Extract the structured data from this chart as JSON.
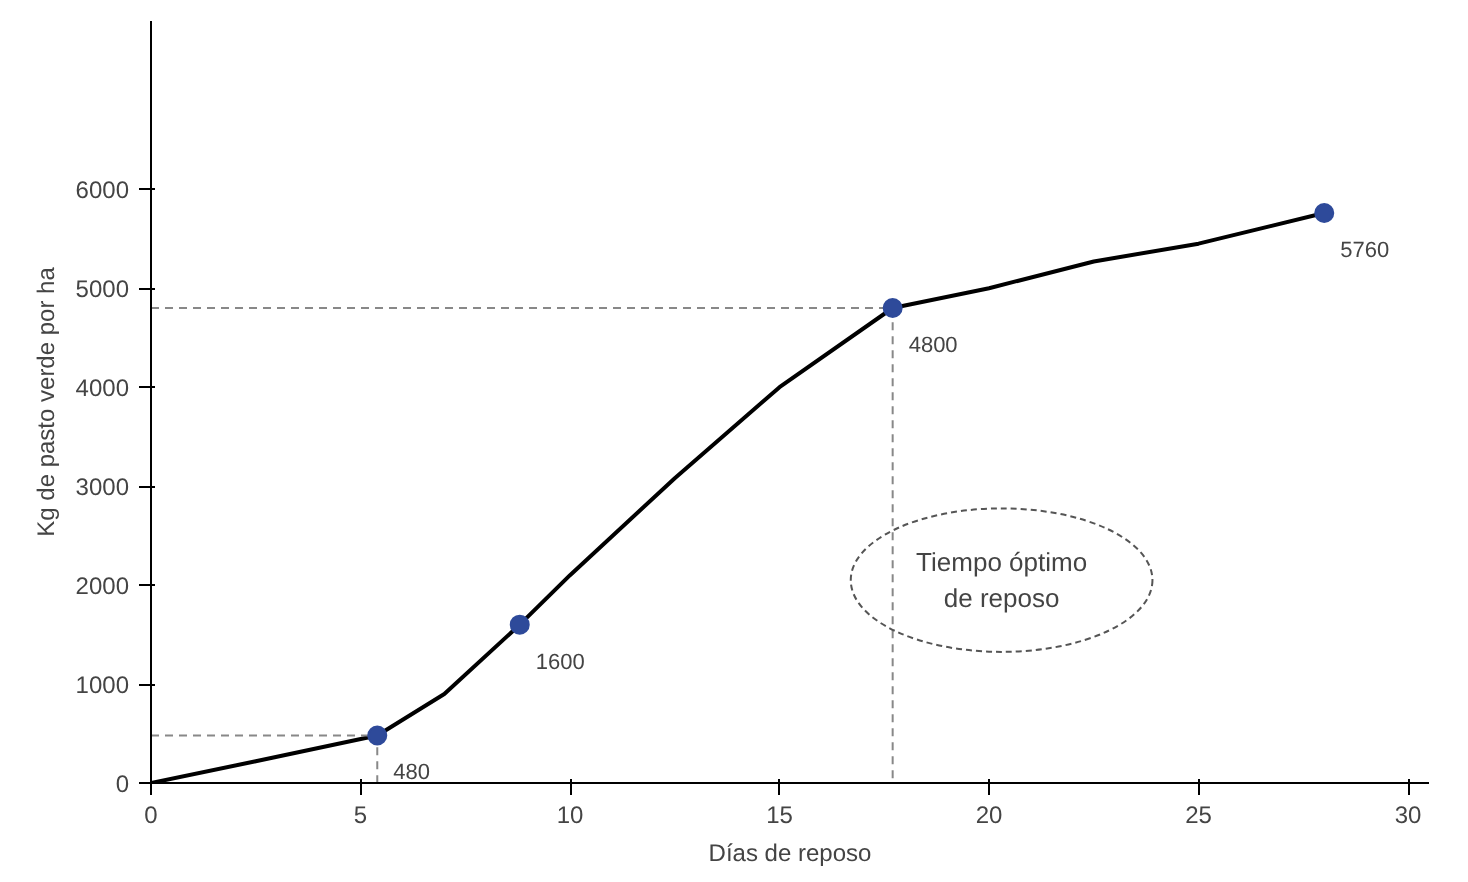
{
  "chart_data": {
    "type": "line",
    "xlabel": "Días de reposo",
    "ylabel": "Kg de pasto verde por ha",
    "xlim": [
      0,
      30.5
    ],
    "ylim": [
      0,
      7700
    ],
    "xticks": [
      0,
      5,
      10,
      15,
      20,
      25,
      30
    ],
    "yticks": [
      0,
      1000,
      2000,
      3000,
      4000,
      5000,
      6000
    ],
    "grid": false,
    "annotations": [
      "Tiempo óptimo\nde reposo"
    ],
    "series": [
      {
        "color": "#000000",
        "x": [
          0,
          2.5,
          5.4,
          7,
          8.8,
          10,
          12.5,
          15,
          17.7,
          20,
          22.5,
          25,
          28
        ],
        "values": [
          0,
          220,
          480,
          900,
          1600,
          2100,
          3080,
          4000,
          4800,
          5000,
          5270,
          5450,
          5760
        ],
        "line_style": "solid",
        "marker": "none"
      },
      {
        "type": "line",
        "color": "#888888",
        "x": [
          0,
          5.4,
          5.4
        ],
        "values": [
          480,
          480,
          0
        ],
        "line_style": "dashed",
        "marker": "none"
      },
      {
        "type": "line",
        "color": "#888888",
        "x": [
          0,
          17.7,
          17.7
        ],
        "values": [
          4800,
          4800,
          0
        ],
        "line_style": "dashed",
        "marker": "none"
      },
      {
        "type": "scatter",
        "color": "#2e4a9a",
        "x": [
          5.4,
          8.8,
          17.7,
          28
        ],
        "values": [
          480,
          1600,
          4800,
          5760
        ],
        "value_labels": [
          "480",
          "1600",
          "4800",
          "5760"
        ],
        "marker": "circle"
      }
    ]
  }
}
